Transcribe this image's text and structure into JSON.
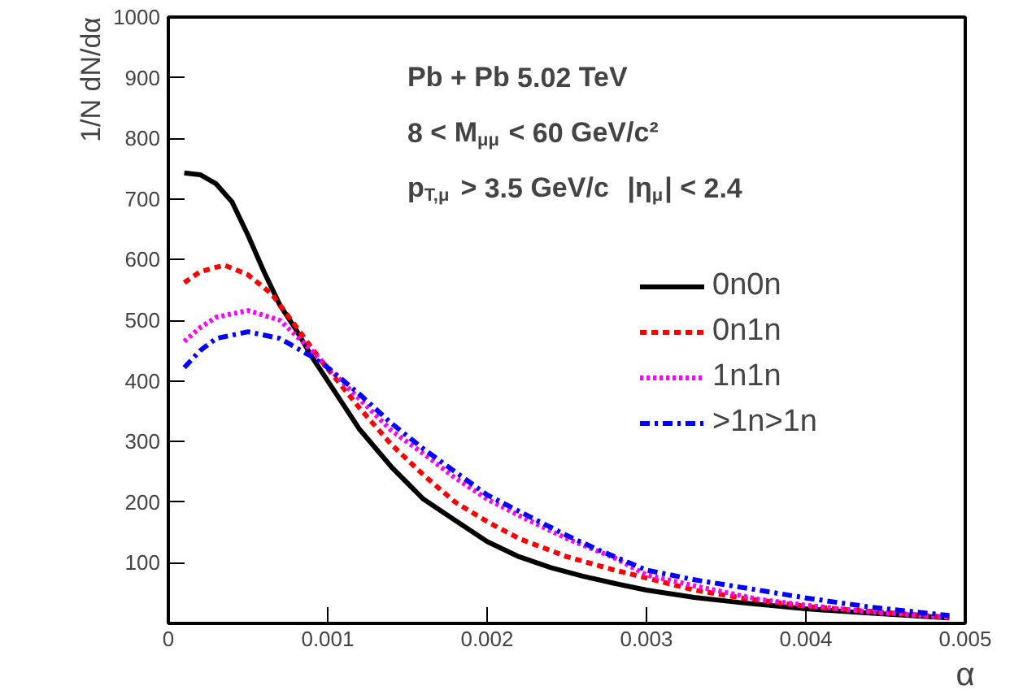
{
  "chart_data": {
    "type": "line",
    "xlabel": "α",
    "ylabel": "1/N dN/dα",
    "annotations": [
      "Pb + Pb 5.02 TeV",
      "8 < M$_{μμ}$ < 60 GeV/c²",
      "p$_{T,μ}$ > 3.5 GeV/c  |η$_{μ}$| < 2.4"
    ],
    "xlim": [
      0,
      0.005
    ],
    "xticks": [
      0,
      0.001,
      0.002,
      0.003,
      0.004,
      0.005
    ],
    "ylim": [
      0,
      1000
    ],
    "yticks": [
      100,
      200,
      300,
      400,
      500,
      600,
      700,
      800,
      900,
      1000
    ],
    "grid": false,
    "legend": "right",
    "marker": "none",
    "series": [
      {
        "name": "0n0n",
        "color": "#000000",
        "line_style": "solid",
        "x": [
          0.0001,
          0.0002,
          0.0003,
          0.0004,
          0.0005,
          0.0006,
          0.0007,
          0.0008,
          0.0009,
          0.001,
          0.0012,
          0.0014,
          0.0016,
          0.0018,
          0.002,
          0.0022,
          0.0024,
          0.0026,
          0.0028,
          0.003,
          0.0033,
          0.0036,
          0.004,
          0.0044,
          0.0049
        ],
        "values": [
          743,
          740,
          725,
          695,
          640,
          580,
          525,
          485,
          440,
          400,
          320,
          258,
          205,
          170,
          135,
          110,
          92,
          78,
          66,
          55,
          43,
          34,
          24,
          17,
          9
        ]
      },
      {
        "name": "0n1n",
        "color": "#ff0000",
        "line_style": "dashed",
        "x": [
          0.0001,
          0.0002,
          0.00035,
          0.0005,
          0.00065,
          0.0008,
          0.0009,
          0.001,
          0.0012,
          0.0014,
          0.0016,
          0.0018,
          0.002,
          0.0022,
          0.0025,
          0.0028,
          0.003,
          0.0033,
          0.0036,
          0.004,
          0.0044,
          0.0049
        ],
        "values": [
          562,
          580,
          591,
          575,
          543,
          490,
          454,
          420,
          355,
          295,
          245,
          200,
          168,
          140,
          110,
          88,
          75,
          55,
          42,
          28,
          20,
          10
        ]
      },
      {
        "name": "1n1n",
        "color": "#ff00ff",
        "line_style": "dotted",
        "x": [
          0.0001,
          0.0002,
          0.0003,
          0.0005,
          0.0007,
          0.0009,
          0.001,
          0.0012,
          0.0014,
          0.0016,
          0.0018,
          0.002,
          0.0022,
          0.0025,
          0.0028,
          0.003,
          0.0033,
          0.0037,
          0.004,
          0.0044,
          0.0049
        ],
        "values": [
          465,
          488,
          505,
          516,
          500,
          450,
          422,
          370,
          318,
          280,
          240,
          205,
          178,
          140,
          108,
          80,
          62,
          40,
          30,
          19,
          10
        ]
      },
      {
        "name": ">1n>1n",
        "color": "#0000ff",
        "line_style": "dashdot",
        "x": [
          0.0001,
          0.0002,
          0.0003,
          0.0005,
          0.0007,
          0.0009,
          0.001,
          0.0012,
          0.0014,
          0.0016,
          0.0018,
          0.002,
          0.0022,
          0.0025,
          0.0027,
          0.003,
          0.0033,
          0.0037,
          0.004,
          0.0044,
          0.0049
        ],
        "values": [
          422,
          450,
          470,
          481,
          470,
          440,
          422,
          378,
          330,
          288,
          250,
          212,
          185,
          145,
          121,
          88,
          72,
          55,
          42,
          27,
          13
        ]
      }
    ]
  }
}
